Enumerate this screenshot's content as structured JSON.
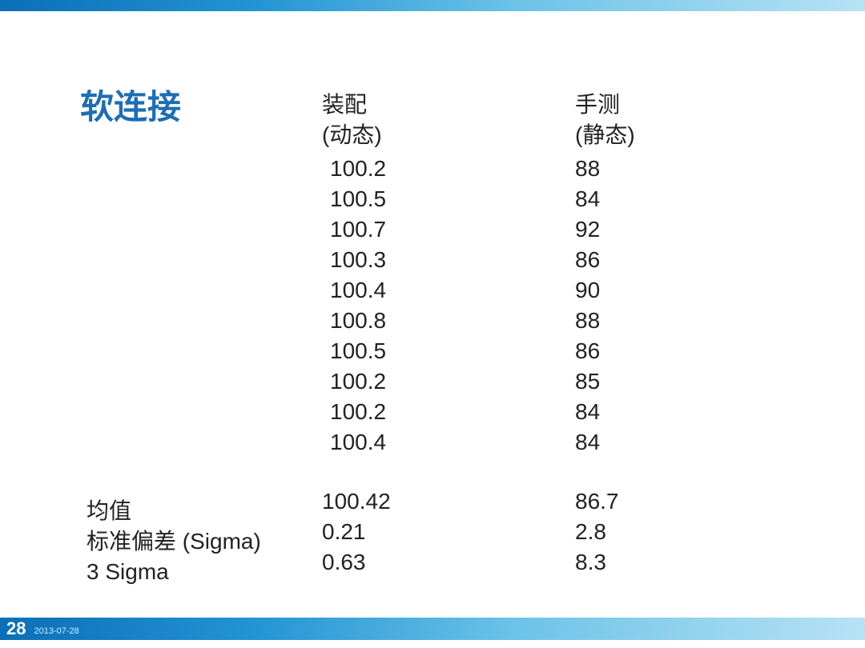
{
  "title": "软连接",
  "columns": {
    "col1": {
      "header1": "装配",
      "header2": "(动态)",
      "values": [
        "100.2",
        "100.5",
        "100.7",
        "100.3",
        "100.4",
        "100.8",
        "100.5",
        "100.2",
        "100.2",
        "100.4"
      ],
      "stats": [
        "100.42",
        "0.21",
        "0.63"
      ]
    },
    "col2": {
      "header1": "手测",
      "header2": "(静态)",
      "values": [
        "88",
        "84",
        "92",
        "86",
        "90",
        "88",
        "86",
        "85",
        "84",
        "84"
      ],
      "stats": [
        "86.7",
        "2.8",
        "8.3"
      ]
    }
  },
  "stat_labels": [
    "均值",
    "标准偏差 (Sigma)",
    "3 Sigma"
  ],
  "footer": {
    "page_number": "28",
    "date": "2013-07-28"
  },
  "style": {
    "title_color": "#1f6db3",
    "title_fontsize": 42,
    "body_fontsize": 28,
    "line_height": 38,
    "text_color": "#222222",
    "background": "#ffffff",
    "bar_gradient": [
      "#0a6fb8",
      "#2495d4",
      "#6dc3e8",
      "#b7e2f4"
    ]
  }
}
